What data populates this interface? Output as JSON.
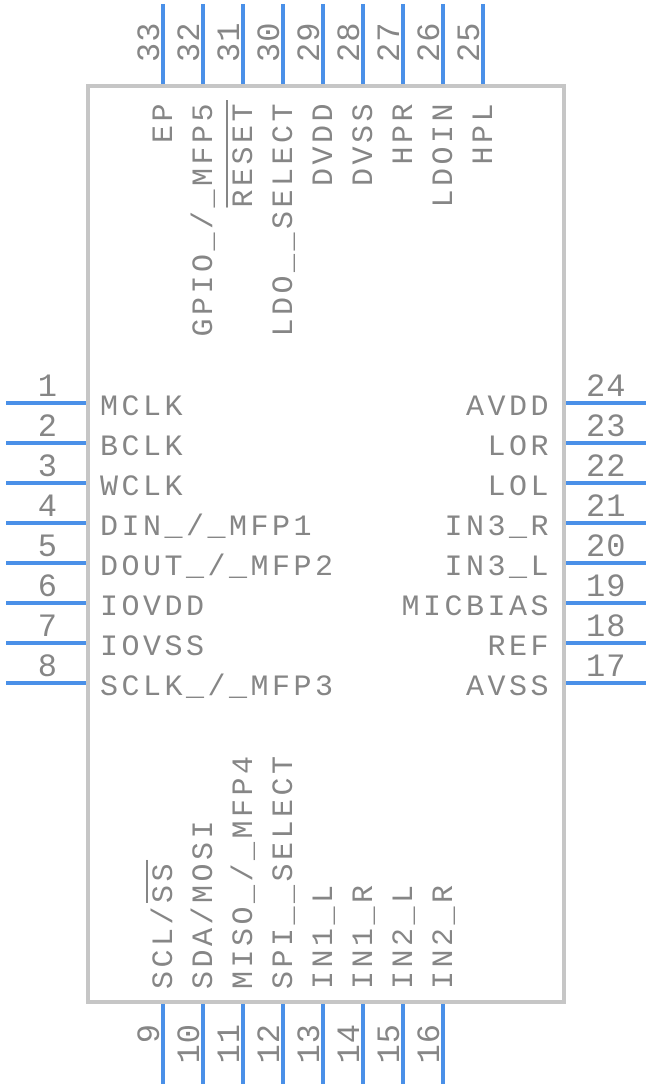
{
  "colors": {
    "pin": "#4a90e8",
    "text": "#868686",
    "body_border": "#c6c6c6",
    "background": "#ffffff"
  },
  "chip": {
    "top_pins": [
      {
        "number": "33",
        "segments": [
          {
            "text": "EP",
            "overline": false
          }
        ]
      },
      {
        "number": "32",
        "segments": [
          {
            "text": "GPIO_/_MFP5",
            "overline": false
          }
        ]
      },
      {
        "number": "31",
        "segments": [
          {
            "text": "RESET",
            "overline": true
          }
        ]
      },
      {
        "number": "30",
        "segments": [
          {
            "text": "LDO__SELECT",
            "overline": false
          }
        ]
      },
      {
        "number": "29",
        "segments": [
          {
            "text": "DVDD",
            "overline": false
          }
        ]
      },
      {
        "number": "28",
        "segments": [
          {
            "text": "DVSS",
            "overline": false
          }
        ]
      },
      {
        "number": "27",
        "segments": [
          {
            "text": "HPR",
            "overline": false
          }
        ]
      },
      {
        "number": "26",
        "segments": [
          {
            "text": "LDOIN",
            "overline": false
          }
        ]
      },
      {
        "number": "25",
        "segments": [
          {
            "text": "HPL",
            "overline": false
          }
        ]
      }
    ],
    "left_pins": [
      {
        "number": "1",
        "segments": [
          {
            "text": "MCLK",
            "overline": false
          }
        ]
      },
      {
        "number": "2",
        "segments": [
          {
            "text": "BCLK",
            "overline": false
          }
        ]
      },
      {
        "number": "3",
        "segments": [
          {
            "text": "WCLK",
            "overline": false
          }
        ]
      },
      {
        "number": "4",
        "segments": [
          {
            "text": "DIN_/_MFP1",
            "overline": false
          }
        ]
      },
      {
        "number": "5",
        "segments": [
          {
            "text": "DOUT_/_MFP2",
            "overline": false
          }
        ]
      },
      {
        "number": "6",
        "segments": [
          {
            "text": "IOVDD",
            "overline": false
          }
        ]
      },
      {
        "number": "7",
        "segments": [
          {
            "text": "IOVSS",
            "overline": false
          }
        ]
      },
      {
        "number": "8",
        "segments": [
          {
            "text": "SCLK_/_MFP3",
            "overline": false
          }
        ]
      }
    ],
    "right_pins": [
      {
        "number": "24",
        "segments": [
          {
            "text": "AVDD",
            "overline": false
          }
        ]
      },
      {
        "number": "23",
        "segments": [
          {
            "text": "LOR",
            "overline": false
          }
        ]
      },
      {
        "number": "22",
        "segments": [
          {
            "text": "LOL",
            "overline": false
          }
        ]
      },
      {
        "number": "21",
        "segments": [
          {
            "text": "IN3_R",
            "overline": false
          }
        ]
      },
      {
        "number": "20",
        "segments": [
          {
            "text": "IN3_L",
            "overline": false
          }
        ]
      },
      {
        "number": "19",
        "segments": [
          {
            "text": "MICBIAS",
            "overline": false
          }
        ]
      },
      {
        "number": "18",
        "segments": [
          {
            "text": "REF",
            "overline": false
          }
        ]
      },
      {
        "number": "17",
        "segments": [
          {
            "text": "AVSS",
            "overline": false
          }
        ]
      }
    ],
    "bottom_pins": [
      {
        "number": "9",
        "segments": [
          {
            "text": "SCL/",
            "overline": false
          },
          {
            "text": "SS",
            "overline": true
          }
        ]
      },
      {
        "number": "10",
        "segments": [
          {
            "text": "SDA/MOSI",
            "overline": false
          }
        ]
      },
      {
        "number": "11",
        "segments": [
          {
            "text": "MISO_/_MFP4",
            "overline": false
          }
        ]
      },
      {
        "number": "12",
        "segments": [
          {
            "text": "SPI__SELECT",
            "overline": false
          }
        ]
      },
      {
        "number": "13",
        "segments": [
          {
            "text": "IN1_L",
            "overline": false
          }
        ]
      },
      {
        "number": "14",
        "segments": [
          {
            "text": "IN1_R",
            "overline": false
          }
        ]
      },
      {
        "number": "15",
        "segments": [
          {
            "text": "IN2_L",
            "overline": false
          }
        ]
      },
      {
        "number": "16",
        "segments": [
          {
            "text": "IN2_R",
            "overline": false
          }
        ]
      }
    ]
  }
}
